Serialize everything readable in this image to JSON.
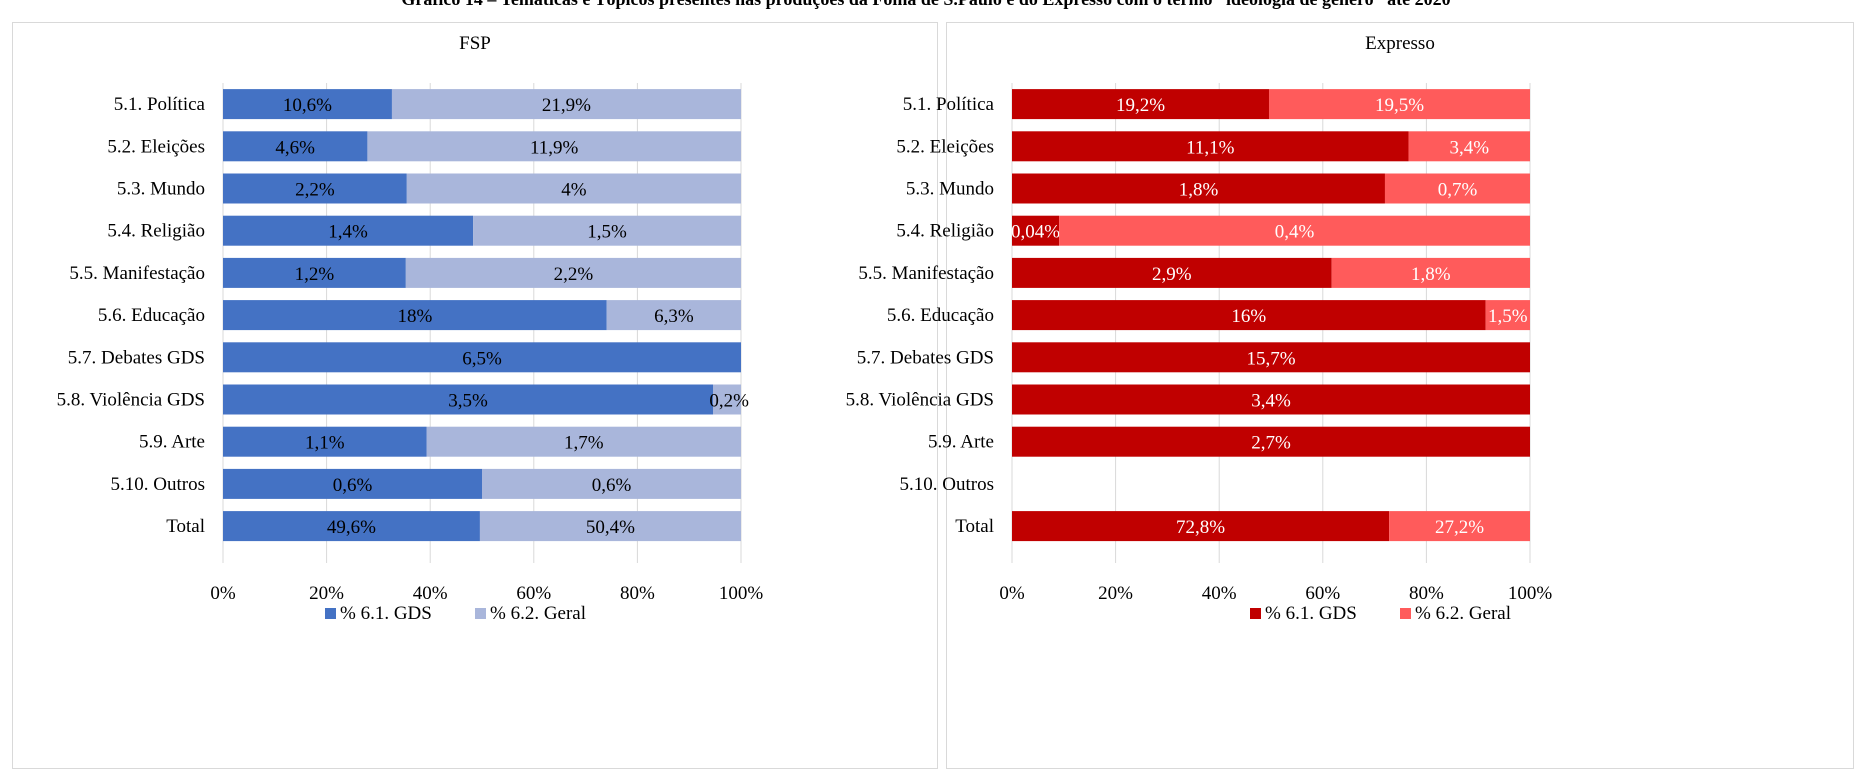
{
  "figure_title": "Gráfico 14 – Temáticas e Tópicos presentes nas produções da Folha de S.Paulo e do Expresso com o termo “ideologia de gênero” até 2020",
  "chart_data": [
    {
      "type": "bar",
      "orientation": "horizontal",
      "stacked": true,
      "percent_stacked": true,
      "title": "FSP",
      "categories": [
        "5.1. Política",
        "5.2. Eleições",
        "5.3. Mundo",
        "5.4. Religião",
        "5.5. Manifestação",
        "5.6. Educação",
        "5.7. Debates GDS",
        "5.8. Violência GDS",
        "5.9. Arte",
        "5.10. Outros",
        "Total"
      ],
      "series": [
        {
          "name": "% 6.1. GDS",
          "color": "#4472C4",
          "values": [
            10.6,
            4.6,
            2.2,
            1.4,
            1.2,
            18,
            6.5,
            3.5,
            1.1,
            0.6,
            49.6
          ],
          "labels": [
            "10,6%",
            "4,6%",
            "2,2%",
            "1,4%",
            "1,2%",
            "18%",
            "6,5%",
            "3,5%",
            "1,1%",
            "0,6%",
            "49,6%"
          ]
        },
        {
          "name": "% 6.2. Geral",
          "color": "#A9B6DB",
          "values": [
            21.9,
            11.9,
            4,
            1.5,
            2.2,
            6.3,
            0,
            0.2,
            1.7,
            0.6,
            50.4
          ],
          "labels": [
            "21,9%",
            "11,9%",
            "4%",
            "1,5%",
            "2,2%",
            "6,3%",
            "",
            "0,2%",
            "1,7%",
            "0,6%",
            "50,4%"
          ]
        }
      ],
      "x_ticks": [
        "0%",
        "20%",
        "40%",
        "60%",
        "80%",
        "100%"
      ],
      "xlim": [
        0,
        100
      ],
      "grid": true,
      "legend": "bottom"
    },
    {
      "type": "bar",
      "orientation": "horizontal",
      "stacked": true,
      "percent_stacked": true,
      "title": "Expresso",
      "categories": [
        "5.1. Política",
        "5.2. Eleições",
        "5.3. Mundo",
        "5.4. Religião",
        "5.5. Manifestação",
        "5.6. Educação",
        "5.7. Debates GDS",
        "5.8. Violência GDS",
        "5.9. Arte",
        "5.10. Outros",
        "Total"
      ],
      "series": [
        {
          "name": "% 6.1. GDS",
          "color": "#C00000",
          "values": [
            19.2,
            11.1,
            1.8,
            0.04,
            2.9,
            16,
            15.7,
            3.4,
            2.7,
            0,
            72.8
          ],
          "labels": [
            "19,2%",
            "11,1%",
            "1,8%",
            "0,04%",
            "2,9%",
            "16%",
            "15,7%",
            "3,4%",
            "2,7%",
            "",
            "72,8%"
          ]
        },
        {
          "name": "% 6.2. Geral",
          "color": "#FF5B5B",
          "values": [
            19.5,
            3.4,
            0.7,
            0.4,
            1.8,
            1.5,
            0,
            0,
            0,
            0,
            27.2
          ],
          "labels": [
            "19,5%",
            "3,4%",
            "0,7%",
            "0,4%",
            "1,8%",
            "1,5%",
            "",
            "",
            "",
            "",
            "27,2%"
          ]
        }
      ],
      "x_ticks": [
        "0%",
        "20%",
        "40%",
        "60%",
        "80%",
        "100%"
      ],
      "xlim": [
        0,
        100
      ],
      "grid": true,
      "legend": "bottom"
    }
  ]
}
